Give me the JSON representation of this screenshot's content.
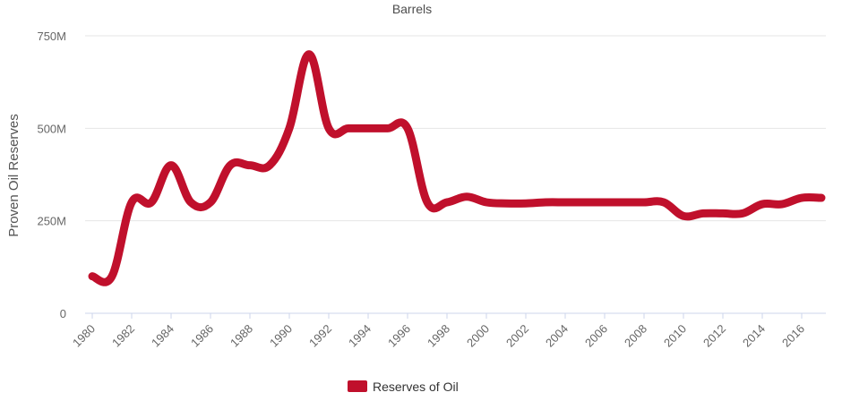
{
  "chart_data": {
    "type": "line",
    "title": "Barrels",
    "xlabel": "",
    "ylabel": "Proven Oil Reserves",
    "x": [
      1980,
      1981,
      1982,
      1983,
      1984,
      1985,
      1986,
      1987,
      1988,
      1989,
      1990,
      1991,
      1992,
      1993,
      1994,
      1995,
      1996,
      1997,
      1998,
      1999,
      2000,
      2001,
      2002,
      2003,
      2004,
      2005,
      2006,
      2007,
      2008,
      2009,
      2010,
      2011,
      2012,
      2013,
      2014,
      2015,
      2016,
      2017
    ],
    "series": [
      {
        "name": "Reserves of Oil",
        "color": "#c0102c",
        "values": [
          100,
          100,
          300,
          300,
          400,
          300,
          300,
          400,
          400,
          400,
          500,
          700,
          500,
          500,
          500,
          500,
          500,
          300,
          300,
          315,
          300,
          297,
          297,
          300,
          300,
          300,
          300,
          300,
          300,
          300,
          263,
          270,
          270,
          270,
          295,
          295,
          312,
          312
        ]
      }
    ],
    "units": "M",
    "ylim": [
      0,
      750
    ],
    "yticks": [
      0,
      250,
      500,
      750
    ],
    "ytick_labels": [
      "0",
      "250M",
      "500M",
      "750M"
    ],
    "xticks": [
      1980,
      1982,
      1984,
      1986,
      1988,
      1990,
      1992,
      1994,
      1996,
      1998,
      2000,
      2002,
      2004,
      2006,
      2008,
      2010,
      2012,
      2014,
      2016
    ],
    "grid": true,
    "legend": "bottom-center"
  }
}
